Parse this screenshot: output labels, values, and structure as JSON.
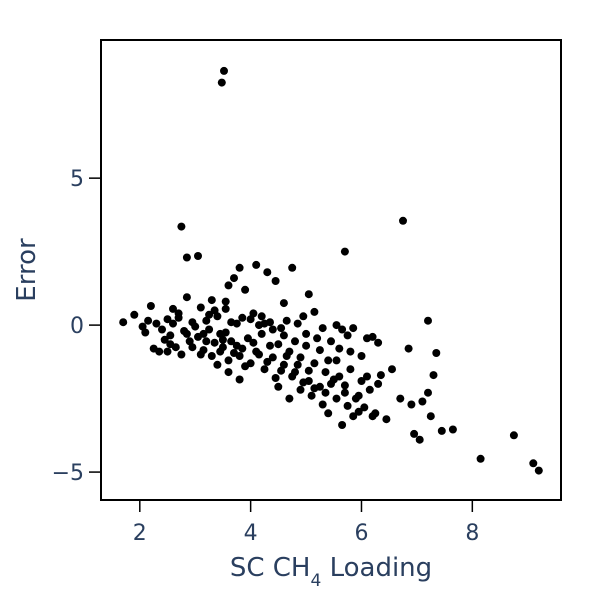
{
  "chart_data": {
    "type": "scatter",
    "title": "",
    "xlabel_main": "SC CH",
    "xlabel_sub": "4",
    "xlabel_tail": " Loading",
    "ylabel": "Error",
    "xlim": [
      1.3,
      9.6
    ],
    "ylim": [
      -5.95,
      9.7
    ],
    "xticks": [
      2,
      4,
      6,
      8
    ],
    "xtick_labels": [
      "2",
      "4",
      "6",
      "8"
    ],
    "yticks": [
      -5,
      0,
      5
    ],
    "ytick_labels": [
      "−5",
      "0",
      "5"
    ],
    "grid": false,
    "legend": "none",
    "marker_color": "#000000",
    "axis_color": "#000000",
    "text_color": "#2a3f5f",
    "series": [
      {
        "points": [
          [
            3.52,
            8.65
          ],
          [
            3.48,
            8.25
          ],
          [
            2.75,
            3.35
          ],
          [
            6.75,
            3.55
          ],
          [
            5.7,
            2.5
          ],
          [
            2.85,
            2.3
          ],
          [
            3.05,
            2.35
          ],
          [
            4.1,
            2.05
          ],
          [
            4.3,
            1.8
          ],
          [
            3.8,
            1.95
          ],
          [
            4.75,
            1.95
          ],
          [
            4.45,
            1.5
          ],
          [
            3.7,
            1.6
          ],
          [
            3.6,
            1.35
          ],
          [
            3.9,
            1.2
          ],
          [
            5.05,
            1.05
          ],
          [
            4.6,
            0.75
          ],
          [
            3.55,
            0.8
          ],
          [
            2.85,
            0.95
          ],
          [
            3.3,
            0.85
          ],
          [
            2.2,
            0.65
          ],
          [
            2.6,
            0.55
          ],
          [
            3.1,
            0.6
          ],
          [
            4.05,
            0.4
          ],
          [
            4.95,
            0.3
          ],
          [
            5.15,
            0.45
          ],
          [
            7.2,
            0.15
          ],
          [
            1.7,
            0.1
          ],
          [
            1.9,
            0.35
          ],
          [
            2.1,
            -0.25
          ],
          [
            2.3,
            0.05
          ],
          [
            2.5,
            0.2
          ],
          [
            2.7,
            0.4
          ],
          [
            2.95,
            0.1
          ],
          [
            3.2,
            0.15
          ],
          [
            3.4,
            0.3
          ],
          [
            3.65,
            0.1
          ],
          [
            3.85,
            0.25
          ],
          [
            4.15,
            0.0
          ],
          [
            4.35,
            0.1
          ],
          [
            4.55,
            -0.1
          ],
          [
            4.85,
            0.05
          ],
          [
            5.3,
            -0.1
          ],
          [
            5.55,
            0.0
          ],
          [
            5.75,
            -0.35
          ],
          [
            5.85,
            -0.1
          ],
          [
            6.1,
            -0.45
          ],
          [
            6.3,
            -0.6
          ],
          [
            2.25,
            -0.8
          ],
          [
            2.45,
            -0.5
          ],
          [
            2.55,
            -0.35
          ],
          [
            2.65,
            -0.75
          ],
          [
            2.8,
            -0.2
          ],
          [
            2.9,
            -0.55
          ],
          [
            3.05,
            -0.4
          ],
          [
            3.15,
            -0.85
          ],
          [
            3.25,
            -0.15
          ],
          [
            3.35,
            -0.6
          ],
          [
            3.45,
            -0.9
          ],
          [
            3.55,
            -0.25
          ],
          [
            3.6,
            -1.2
          ],
          [
            3.75,
            -0.7
          ],
          [
            3.8,
            -1.05
          ],
          [
            3.95,
            -0.45
          ],
          [
            4.0,
            -1.3
          ],
          [
            4.1,
            -0.9
          ],
          [
            4.2,
            -0.3
          ],
          [
            4.25,
            -1.5
          ],
          [
            4.4,
            -1.1
          ],
          [
            4.5,
            -0.65
          ],
          [
            4.6,
            -1.35
          ],
          [
            4.7,
            -0.9
          ],
          [
            4.8,
            -1.6
          ],
          [
            4.9,
            -1.1
          ],
          [
            5.0,
            -0.7
          ],
          [
            5.05,
            -1.9
          ],
          [
            5.15,
            -1.3
          ],
          [
            5.25,
            -0.85
          ],
          [
            5.35,
            -1.6
          ],
          [
            5.45,
            -2.0
          ],
          [
            5.55,
            -1.2
          ],
          [
            5.6,
            -1.75
          ],
          [
            5.7,
            -2.3
          ],
          [
            5.8,
            -1.5
          ],
          [
            5.9,
            -2.5
          ],
          [
            6.0,
            -1.9
          ],
          [
            6.05,
            -2.8
          ],
          [
            6.15,
            -2.2
          ],
          [
            6.25,
            -3.0
          ],
          [
            6.35,
            -1.7
          ],
          [
            6.45,
            -3.2
          ],
          [
            5.1,
            -2.4
          ],
          [
            4.9,
            -2.2
          ],
          [
            4.7,
            -2.5
          ],
          [
            5.3,
            -2.7
          ],
          [
            5.4,
            -3.0
          ],
          [
            5.65,
            -3.4
          ],
          [
            5.85,
            -3.1
          ],
          [
            6.55,
            -1.5
          ],
          [
            6.7,
            -2.5
          ],
          [
            6.85,
            -0.8
          ],
          [
            6.9,
            -2.7
          ],
          [
            6.95,
            -3.7
          ],
          [
            7.05,
            -3.9
          ],
          [
            7.1,
            -2.6
          ],
          [
            7.2,
            -2.3
          ],
          [
            7.25,
            -3.1
          ],
          [
            7.3,
            -1.7
          ],
          [
            7.35,
            -0.95
          ],
          [
            7.45,
            -3.6
          ],
          [
            7.65,
            -3.55
          ],
          [
            8.15,
            -4.55
          ],
          [
            8.75,
            -3.75
          ],
          [
            9.1,
            -4.7
          ],
          [
            9.2,
            -4.95
          ],
          [
            2.05,
            -0.05
          ],
          [
            2.35,
            -0.9
          ],
          [
            2.55,
            -0.65
          ],
          [
            2.75,
            -1.0
          ],
          [
            2.95,
            -0.75
          ],
          [
            3.15,
            -0.3
          ],
          [
            3.3,
            -1.05
          ],
          [
            3.5,
            -0.5
          ],
          [
            3.7,
            -0.95
          ],
          [
            3.9,
            -1.4
          ],
          [
            4.05,
            -0.6
          ],
          [
            4.3,
            -1.25
          ],
          [
            4.45,
            -1.8
          ],
          [
            4.65,
            -1.05
          ],
          [
            4.85,
            -1.35
          ],
          [
            5.05,
            -1.55
          ],
          [
            5.25,
            -2.1
          ],
          [
            5.5,
            -1.85
          ],
          [
            5.7,
            -2.05
          ],
          [
            5.95,
            -2.4
          ],
          [
            6.1,
            -1.75
          ],
          [
            3.35,
            0.5
          ],
          [
            3.55,
            0.55
          ],
          [
            3.75,
            0.05
          ],
          [
            4.0,
            0.2
          ],
          [
            4.2,
            0.3
          ],
          [
            4.4,
            -0.15
          ],
          [
            4.65,
            0.15
          ],
          [
            5.0,
            -0.3
          ],
          [
            5.2,
            -0.45
          ],
          [
            5.45,
            -0.55
          ],
          [
            5.6,
            -0.8
          ],
          [
            5.8,
            -0.9
          ],
          [
            6.0,
            -1.05
          ],
          [
            6.2,
            -0.4
          ],
          [
            2.4,
            -0.15
          ],
          [
            2.6,
            0.05
          ],
          [
            2.85,
            -0.3
          ],
          [
            3.0,
            -0.05
          ],
          [
            3.2,
            -0.55
          ],
          [
            3.45,
            -0.3
          ],
          [
            3.65,
            -0.55
          ],
          [
            3.85,
            -0.8
          ],
          [
            4.15,
            -1.0
          ],
          [
            4.35,
            -0.7
          ],
          [
            4.55,
            -1.55
          ],
          [
            4.75,
            -1.75
          ],
          [
            4.95,
            -1.95
          ],
          [
            5.15,
            -2.15
          ],
          [
            5.35,
            -2.3
          ],
          [
            5.55,
            -2.5
          ],
          [
            5.75,
            -2.75
          ],
          [
            5.95,
            -2.95
          ],
          [
            6.2,
            -3.1
          ],
          [
            2.15,
            0.15
          ],
          [
            2.5,
            -0.9
          ],
          [
            2.7,
            0.25
          ],
          [
            3.1,
            -1.0
          ],
          [
            3.4,
            -1.35
          ],
          [
            3.6,
            -1.6
          ],
          [
            3.8,
            -1.85
          ],
          [
            4.25,
            0.05
          ],
          [
            4.5,
            -2.1
          ],
          [
            4.8,
            -0.55
          ],
          [
            5.4,
            -1.2
          ],
          [
            5.65,
            -0.15
          ],
          [
            6.3,
            -2.0
          ],
          [
            3.25,
            0.35
          ],
          [
            3.5,
            -0.75
          ],
          [
            4.6,
            -0.35
          ]
        ]
      }
    ]
  }
}
